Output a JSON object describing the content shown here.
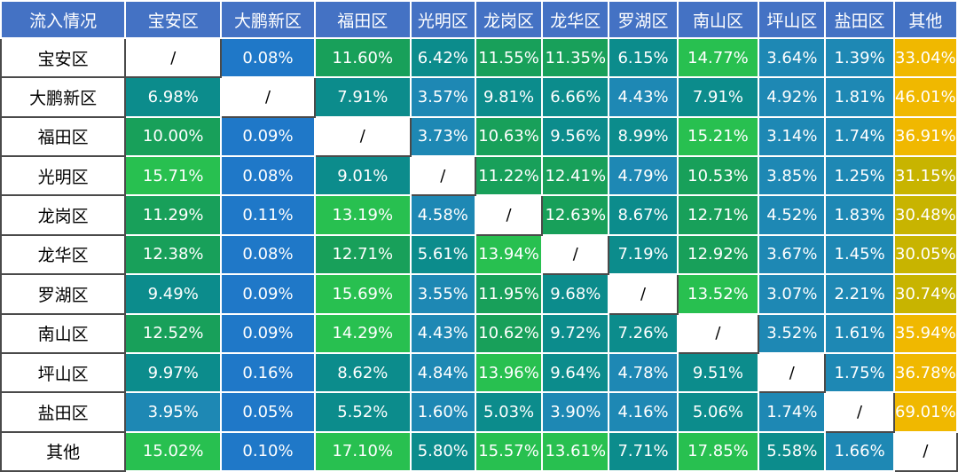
{
  "chart_data": {
    "type": "heatmap",
    "corner_label": "流入情况",
    "columns": [
      "宝安区",
      "大鹏新区",
      "福田区",
      "光明区",
      "龙岗区",
      "龙华区",
      "罗湖区",
      "南山区",
      "坪山区",
      "盐田区",
      "其他"
    ],
    "rows": [
      "宝安区",
      "大鹏新区",
      "福田区",
      "光明区",
      "龙岗区",
      "龙华区",
      "罗湖区",
      "南山区",
      "坪山区",
      "盐田区",
      "其他"
    ],
    "values": [
      [
        "/",
        "0.08%",
        "11.60%",
        "6.42%",
        "11.55%",
        "11.35%",
        "6.15%",
        "14.77%",
        "3.64%",
        "1.39%",
        "33.04%"
      ],
      [
        "6.98%",
        "/",
        "7.91%",
        "3.57%",
        "9.81%",
        "6.66%",
        "4.43%",
        "7.91%",
        "4.92%",
        "1.81%",
        "46.01%"
      ],
      [
        "10.00%",
        "0.09%",
        "/",
        "3.73%",
        "10.63%",
        "9.56%",
        "8.99%",
        "15.21%",
        "3.14%",
        "1.74%",
        "36.91%"
      ],
      [
        "15.71%",
        "0.08%",
        "9.01%",
        "/",
        "11.22%",
        "12.41%",
        "4.79%",
        "10.53%",
        "3.85%",
        "1.25%",
        "31.15%"
      ],
      [
        "11.29%",
        "0.11%",
        "13.19%",
        "4.58%",
        "/",
        "12.63%",
        "8.67%",
        "12.71%",
        "4.52%",
        "1.83%",
        "30.48%"
      ],
      [
        "12.38%",
        "0.08%",
        "12.71%",
        "5.61%",
        "13.94%",
        "/",
        "7.19%",
        "12.92%",
        "3.67%",
        "1.45%",
        "30.05%"
      ],
      [
        "9.49%",
        "0.09%",
        "15.69%",
        "3.55%",
        "11.95%",
        "9.68%",
        "/",
        "13.52%",
        "3.07%",
        "2.21%",
        "30.74%"
      ],
      [
        "12.52%",
        "0.09%",
        "14.29%",
        "4.43%",
        "10.62%",
        "9.72%",
        "7.26%",
        "/",
        "3.52%",
        "1.61%",
        "35.94%"
      ],
      [
        "9.97%",
        "0.16%",
        "8.62%",
        "4.84%",
        "13.96%",
        "9.64%",
        "4.78%",
        "9.51%",
        "/",
        "1.75%",
        "36.78%"
      ],
      [
        "3.95%",
        "0.05%",
        "5.52%",
        "1.60%",
        "5.03%",
        "3.90%",
        "4.16%",
        "5.06%",
        "1.74%",
        "/",
        "69.01%"
      ],
      [
        "15.02%",
        "0.10%",
        "17.10%",
        "5.80%",
        "15.57%",
        "13.61%",
        "7.71%",
        "17.85%",
        "5.58%",
        "1.66%",
        "/"
      ]
    ],
    "header_color": "#4472c4",
    "colors": {
      "very_low": "#1f78c8",
      "low": "#1e88b4",
      "mid": "#0c8c8c",
      "high": "#18a05a",
      "very_high": "#28c050",
      "other_column": "#f0b800",
      "other_column_dark": "#c8b400"
    }
  }
}
